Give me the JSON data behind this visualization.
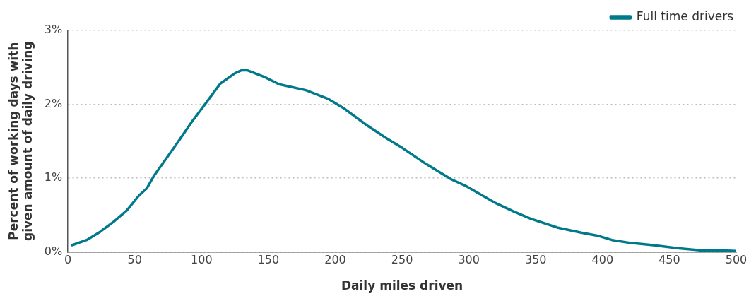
{
  "chart_data": {
    "type": "line",
    "xlabel": "Daily miles driven",
    "ylabel": "Percent of working days with given amount of daily driving",
    "xlim": [
      0,
      500
    ],
    "xticks": [
      0,
      50,
      100,
      150,
      200,
      250,
      300,
      350,
      400,
      450,
      500
    ],
    "ylim": [
      0,
      3
    ],
    "yticks": [
      {
        "value": 0,
        "label": "0%"
      },
      {
        "value": 1,
        "label": "1%"
      },
      {
        "value": 2,
        "label": "2%"
      },
      {
        "value": 3,
        "label": "3%"
      }
    ],
    "grid": "y",
    "legend": "top right",
    "marker": "none",
    "line_style": "solid",
    "series": [
      {
        "name": "Full time drivers",
        "color": "#00798a",
        "x": [
          3,
          14,
          24,
          35,
          44,
          53,
          59,
          64,
          73,
          82,
          93,
          103,
          114,
          125,
          130,
          134,
          147,
          158,
          178,
          195,
          206,
          224,
          239,
          250,
          268,
          287,
          298,
          320,
          333,
          346,
          366,
          384,
          396,
          407,
          421,
          438,
          456,
          473,
          486,
          500
        ],
        "values": [
          0.09,
          0.16,
          0.27,
          0.42,
          0.56,
          0.76,
          0.86,
          1.02,
          1.25,
          1.48,
          1.77,
          2.01,
          2.28,
          2.42,
          2.46,
          2.46,
          2.37,
          2.27,
          2.19,
          2.07,
          1.95,
          1.71,
          1.53,
          1.41,
          1.19,
          0.98,
          0.89,
          0.66,
          0.55,
          0.45,
          0.33,
          0.26,
          0.22,
          0.16,
          0.12,
          0.09,
          0.05,
          0.02,
          0.02,
          0.01
        ]
      }
    ]
  }
}
